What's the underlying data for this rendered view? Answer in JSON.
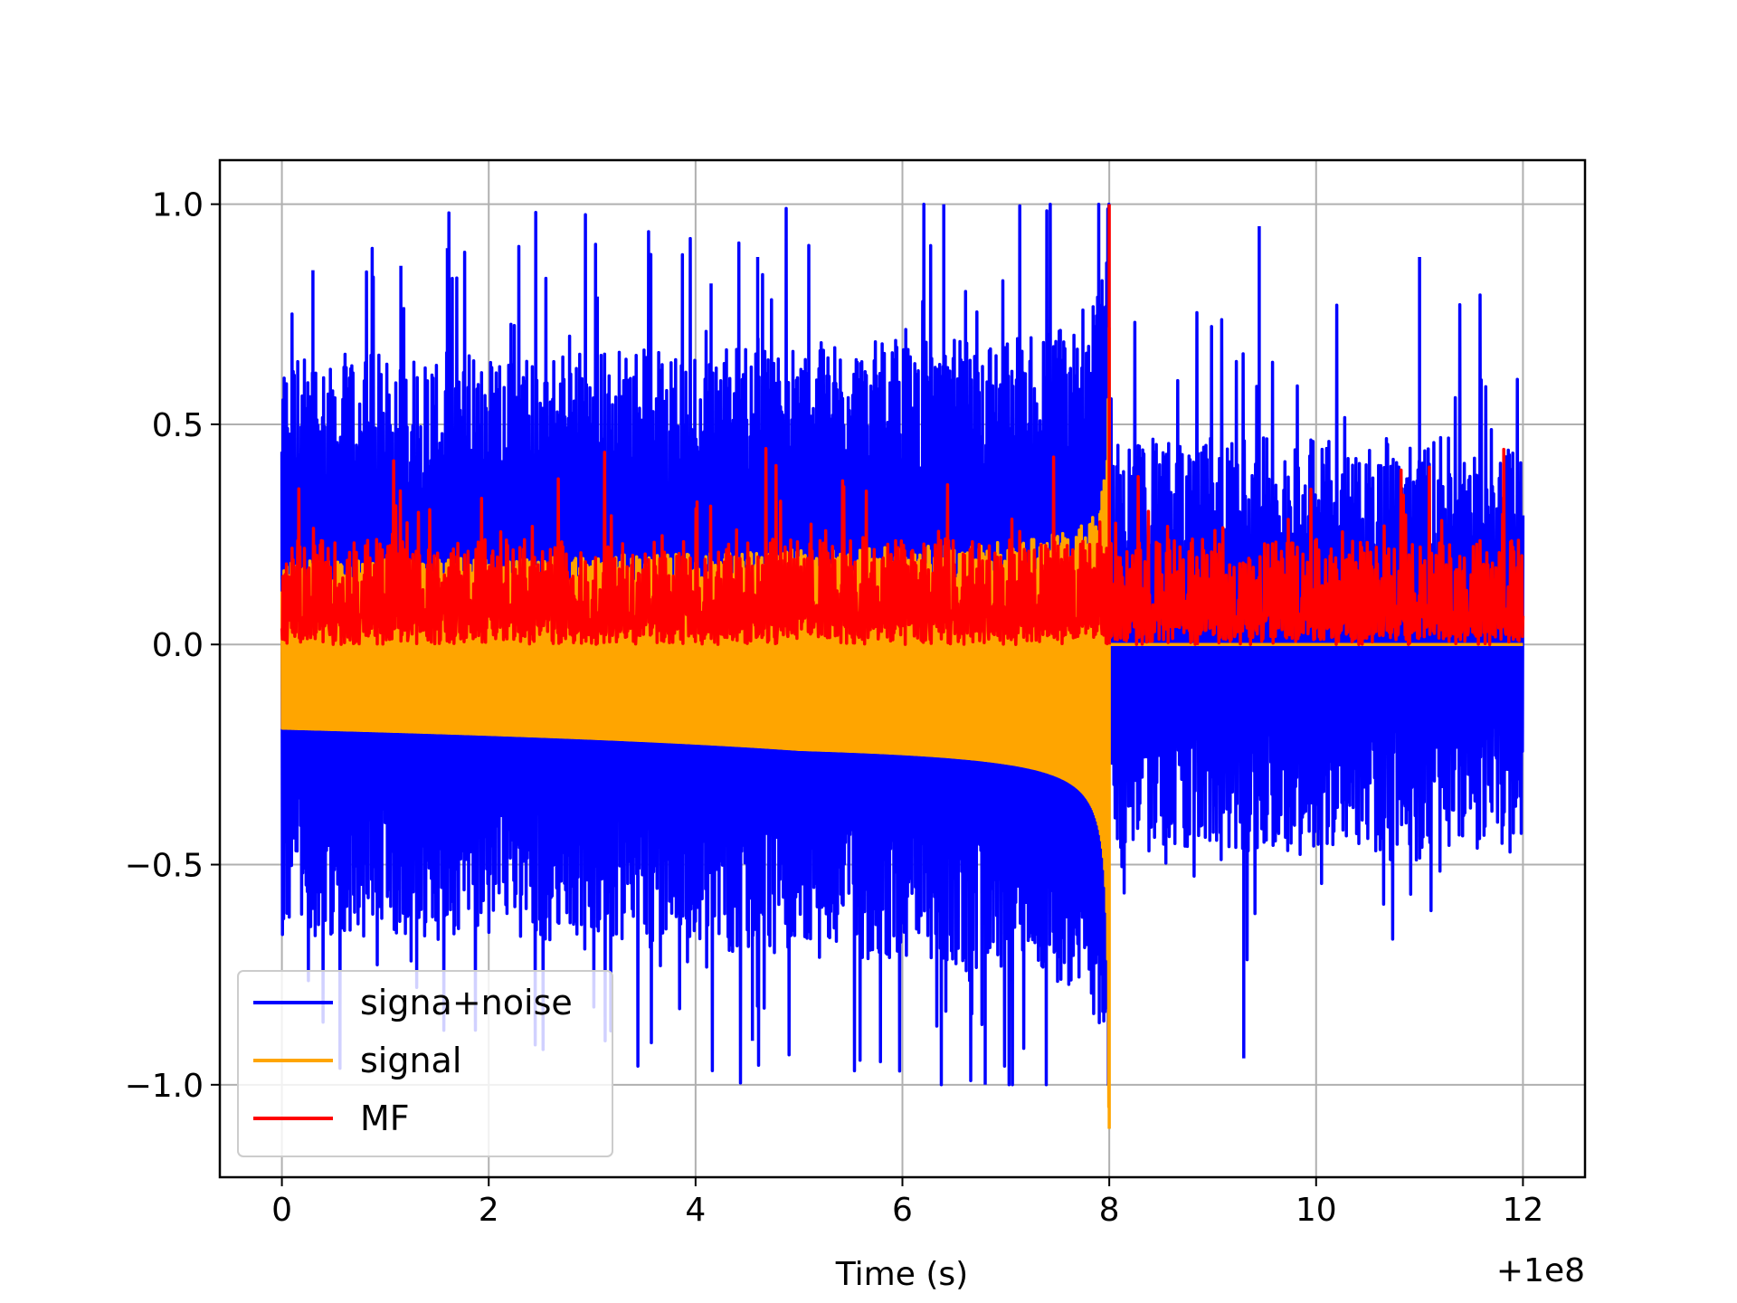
{
  "chart_data": {
    "type": "line",
    "title": "",
    "xlabel": "Time (s)",
    "ylabel": "",
    "x_offset_label": "+1e8",
    "xlim": [
      -0.6,
      12.6
    ],
    "ylim": [
      -1.21,
      1.1
    ],
    "x_ticks": [
      0,
      2,
      4,
      6,
      8,
      10,
      12
    ],
    "x_tick_labels": [
      "0",
      "2",
      "4",
      "6",
      "8",
      "10",
      "12"
    ],
    "y_ticks": [
      -1.0,
      -0.5,
      0.0,
      0.5,
      1.0
    ],
    "y_tick_labels": [
      "−1.0",
      "−0.5",
      "0.0",
      "0.5",
      "1.0"
    ],
    "grid": true,
    "legend_position": "lower-left",
    "series": [
      {
        "name": "signa+noise",
        "color": "#0000ff",
        "description_values": {
          "x_range": [
            0,
            12
          ],
          "envelope_max": 1.0,
          "envelope_min": -1.0,
          "typical_upper": 0.45,
          "typical_lower": -0.5,
          "peak_points": [
            [
              0.3,
              0.85
            ],
            [
              1.15,
              0.86
            ],
            [
              1.6,
              0.9
            ],
            [
              3.05,
              0.79
            ],
            [
              4.15,
              0.82
            ],
            [
              4.6,
              0.88
            ],
            [
              6.4,
              1.0
            ],
            [
              6.8,
              -1.0
            ],
            [
              9.45,
              0.95
            ],
            [
              11.0,
              0.88
            ],
            [
              9.3,
              -0.94
            ],
            [
              4.55,
              -0.9
            ]
          ]
        }
      },
      {
        "name": "signal",
        "color": "#ffa500",
        "description_values": {
          "x_range": [
            0,
            12
          ],
          "chirp_end": 8.0,
          "lower_envelope_start": -0.19,
          "upper_envelope_start": 0.19,
          "peak_max": 0.72,
          "peak_min": -1.1,
          "after_chirp_value": 0.0
        }
      },
      {
        "name": "MF",
        "color": "#ff0000",
        "description_values": {
          "x_range": [
            0,
            12
          ],
          "baseline": 0.0,
          "typical_upper": 0.3,
          "peak_x": 8.0,
          "peak_value": 1.0
        }
      }
    ]
  }
}
